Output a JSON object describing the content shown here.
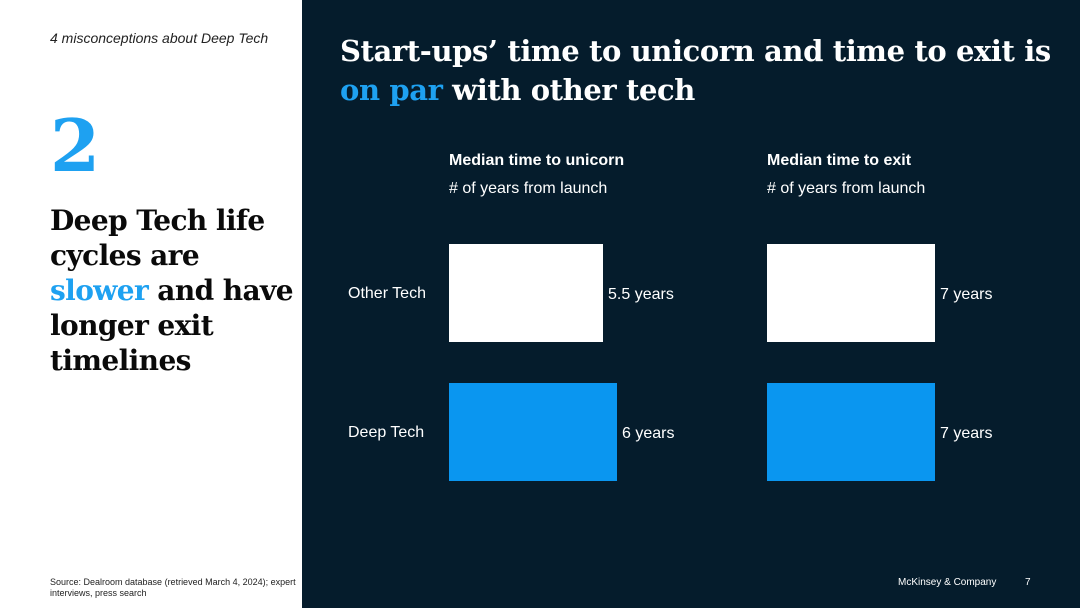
{
  "sidebar": {
    "series_title": "4 misconceptions about Deep Tech",
    "number": "2",
    "headline_before": "Deep Tech life cycles are ",
    "headline_accent": "slower",
    "headline_after": " and have longer exit timelines",
    "source": "Source: Dealroom database (retrieved March 4, 2024); expert interviews, press search"
  },
  "main": {
    "title_before": "Start-ups’ time to unicorn and time to exit is ",
    "title_accent": "on par",
    "title_after": " with other tech"
  },
  "footer": {
    "brand": "McKinsey & Company",
    "page": "7"
  },
  "colors": {
    "navy": "#051c2c",
    "accent": "#1ea1f1",
    "other_tech": "#ffffff",
    "deep_tech": "#0a96f0"
  },
  "chart_data": [
    {
      "type": "bar",
      "orientation": "horizontal",
      "title": "Median time to unicorn",
      "subtitle": "# of years from launch",
      "categories": [
        "Other Tech",
        "Deep Tech"
      ],
      "values": [
        5.5,
        6
      ],
      "value_labels": [
        "5.5 years",
        "6 years"
      ],
      "xlim": [
        0,
        6
      ]
    },
    {
      "type": "bar",
      "orientation": "horizontal",
      "title": "Median time to exit",
      "subtitle": "# of years from launch",
      "categories": [
        "Other Tech",
        "Deep Tech"
      ],
      "values": [
        7,
        7
      ],
      "value_labels": [
        "7 years",
        "7 years"
      ],
      "xlim": [
        0,
        7
      ]
    }
  ]
}
